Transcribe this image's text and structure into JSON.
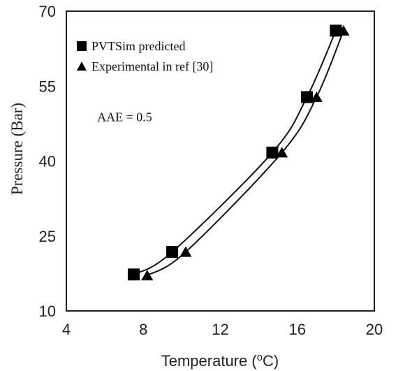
{
  "chart_data": {
    "type": "scatter",
    "title": "",
    "xlabel": "Temperature (",
    "xlabel_sup": "o",
    "xlabel_tail": "C)",
    "ylabel": "Pressure (Bar)",
    "xlim": [
      4,
      20
    ],
    "ylim": [
      10,
      70
    ],
    "xticks": [
      4,
      8,
      12,
      16,
      20
    ],
    "yticks": [
      10,
      25,
      40,
      55,
      70
    ],
    "grid": false,
    "legend_position": "top-left",
    "series": [
      {
        "name": "PVTSim predicted",
        "marker": "square",
        "color": "#000000",
        "smooth_line": true,
        "points": [
          {
            "x": 7.5,
            "y": 17.3
          },
          {
            "x": 9.5,
            "y": 21.8
          },
          {
            "x": 14.7,
            "y": 41.7
          },
          {
            "x": 16.5,
            "y": 52.8
          },
          {
            "x": 18.0,
            "y": 66.1
          }
        ]
      },
      {
        "name": "Experimental in ref [30]",
        "marker": "triangle",
        "color": "#000000",
        "smooth_line": true,
        "points": [
          {
            "x": 8.2,
            "y": 17.1
          },
          {
            "x": 10.2,
            "y": 21.8
          },
          {
            "x": 15.2,
            "y": 41.7
          },
          {
            "x": 17.0,
            "y": 52.8
          },
          {
            "x": 18.4,
            "y": 66.1
          }
        ]
      }
    ],
    "annotations": [
      {
        "text": "AAE = 0.5",
        "x": 5.6,
        "y": 48.0
      }
    ]
  }
}
